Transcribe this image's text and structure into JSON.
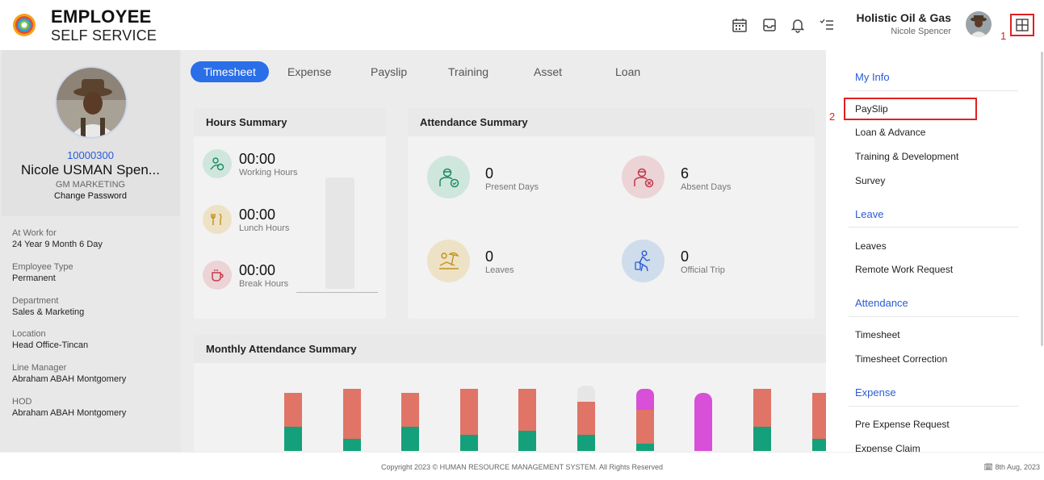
{
  "header": {
    "brand_line1": "EMPLOYEE",
    "brand_line2": "SELF SERVICE",
    "company": "Holistic Oil & Gas",
    "user": "Nicole Spencer"
  },
  "annotations": {
    "a1": "1",
    "a2": "2"
  },
  "profile": {
    "emp_id": "10000300",
    "name": "Nicole USMAN Spen...",
    "role": "GM MARKETING",
    "change_password": "Change Password",
    "fields": [
      {
        "label": "At Work for",
        "value": "24 Year 9 Month 6 Day"
      },
      {
        "label": "Employee Type",
        "value": "Permanent"
      },
      {
        "label": "Department",
        "value": "Sales & Marketing"
      },
      {
        "label": "Location",
        "value": "Head Office-Tincan"
      },
      {
        "label": "Line Manager",
        "value": "Abraham ABAH Montgomery"
      },
      {
        "label": "HOD",
        "value": "Abraham ABAH Montgomery"
      }
    ]
  },
  "tabs": [
    "Timesheet",
    "Expense",
    "Payslip",
    "Training",
    "Asset",
    "Loan"
  ],
  "hours_summary": {
    "title": "Hours Summary",
    "items": [
      {
        "value": "00:00",
        "label": "Working Hours"
      },
      {
        "value": "00:00",
        "label": "Lunch Hours"
      },
      {
        "value": "00:00",
        "label": "Break Hours"
      }
    ]
  },
  "attendance_summary": {
    "title": "Attendance Summary",
    "items": [
      {
        "value": "0",
        "label": "Present Days"
      },
      {
        "value": "6",
        "label": "Absent Days"
      },
      {
        "value": "0",
        "label": "Leaves"
      },
      {
        "value": "0",
        "label": "Official Trip"
      }
    ]
  },
  "monthly": {
    "title": "Monthly Attendance Summary"
  },
  "menu": {
    "sections": [
      {
        "title": "My Info",
        "items": [
          "PaySlip",
          "Loan & Advance",
          "Training & Development",
          "Survey"
        ]
      },
      {
        "title": "Leave",
        "items": [
          "Leaves",
          "Remote Work Request"
        ]
      },
      {
        "title": "Attendance",
        "items": [
          "Timesheet",
          "Timesheet Correction"
        ]
      },
      {
        "title": "Expense",
        "items": [
          "Pre Expense Request",
          "Expense Claim"
        ]
      }
    ]
  },
  "footer": {
    "copyright": "Copyright 2023 © HUMAN RESOURCE MANAGEMENT SYSTEM. All Rights Reserved",
    "date": "8th Aug, 2023"
  },
  "colors": {
    "accent": "#2a6ee8",
    "absent": "#e07467",
    "present": "#14a07a",
    "leave": "#d84fd8",
    "highlight": "#e02020"
  }
}
